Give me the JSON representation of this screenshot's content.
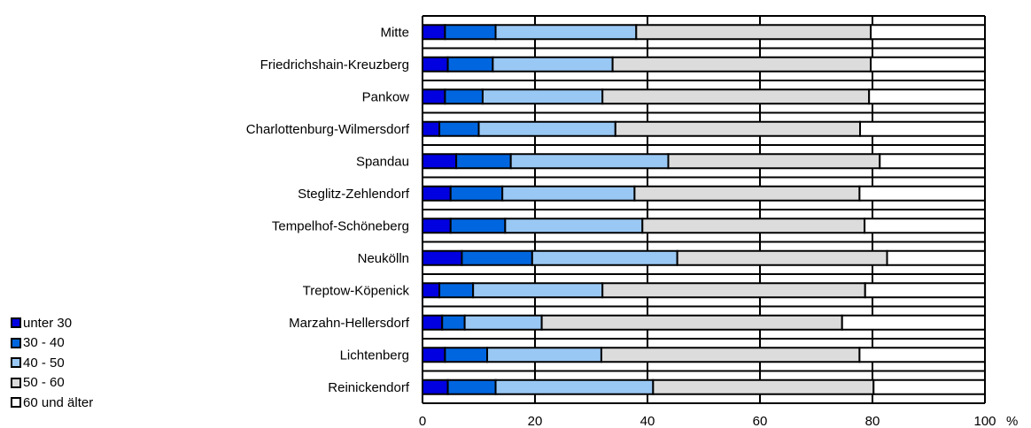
{
  "chart_data": {
    "type": "bar",
    "orientation": "horizontal",
    "stacked": true,
    "title": "",
    "xlabel": "",
    "ylabel": "",
    "x_unit": "%",
    "xlim": [
      0,
      100
    ],
    "x_ticks": [
      "0",
      "20",
      "40",
      "60",
      "80",
      "100"
    ],
    "grid": true,
    "legend_position": "bottom-left",
    "categories": [
      "Mitte",
      "Friedrichshain-Kreuzberg",
      "Pankow",
      "Charlottenburg-Wilmersdorf",
      "Spandau",
      "Steglitz-Zehlendorf",
      "Tempelhof-Schöneberg",
      "Neukölln",
      "Treptow-Köpenick",
      "Marzahn-Hellersdorf",
      "Lichtenberg",
      "Reinickendorf"
    ],
    "series": [
      {
        "name": "unter 30",
        "color": "#0000e0",
        "values": [
          4.0,
          4.5,
          4.0,
          3.0,
          6.0,
          5.0,
          5.0,
          7.0,
          3.0,
          3.5,
          4.0,
          4.5
        ]
      },
      {
        "name": "30 - 40",
        "color": "#0066e0",
        "values": [
          9.0,
          8.0,
          6.7,
          7.0,
          9.7,
          9.2,
          9.7,
          12.5,
          6.0,
          4.0,
          7.5,
          8.5
        ]
      },
      {
        "name": "40 - 50",
        "color": "#9ac8f4",
        "values": [
          25.0,
          21.3,
          21.3,
          24.3,
          28.0,
          23.5,
          24.4,
          25.8,
          23.0,
          13.7,
          20.3,
          28.0
        ]
      },
      {
        "name": "50 - 60",
        "color": "#dcdcdc",
        "values": [
          41.7,
          45.9,
          47.4,
          43.5,
          37.6,
          40.0,
          39.5,
          37.3,
          46.7,
          53.4,
          45.9,
          39.2
        ]
      },
      {
        "name": "60 und älter",
        "color": "#ffffff",
        "values": [
          20.3,
          20.3,
          20.6,
          22.2,
          18.7,
          22.3,
          21.4,
          17.4,
          21.3,
          25.4,
          22.3,
          19.8
        ]
      }
    ]
  }
}
